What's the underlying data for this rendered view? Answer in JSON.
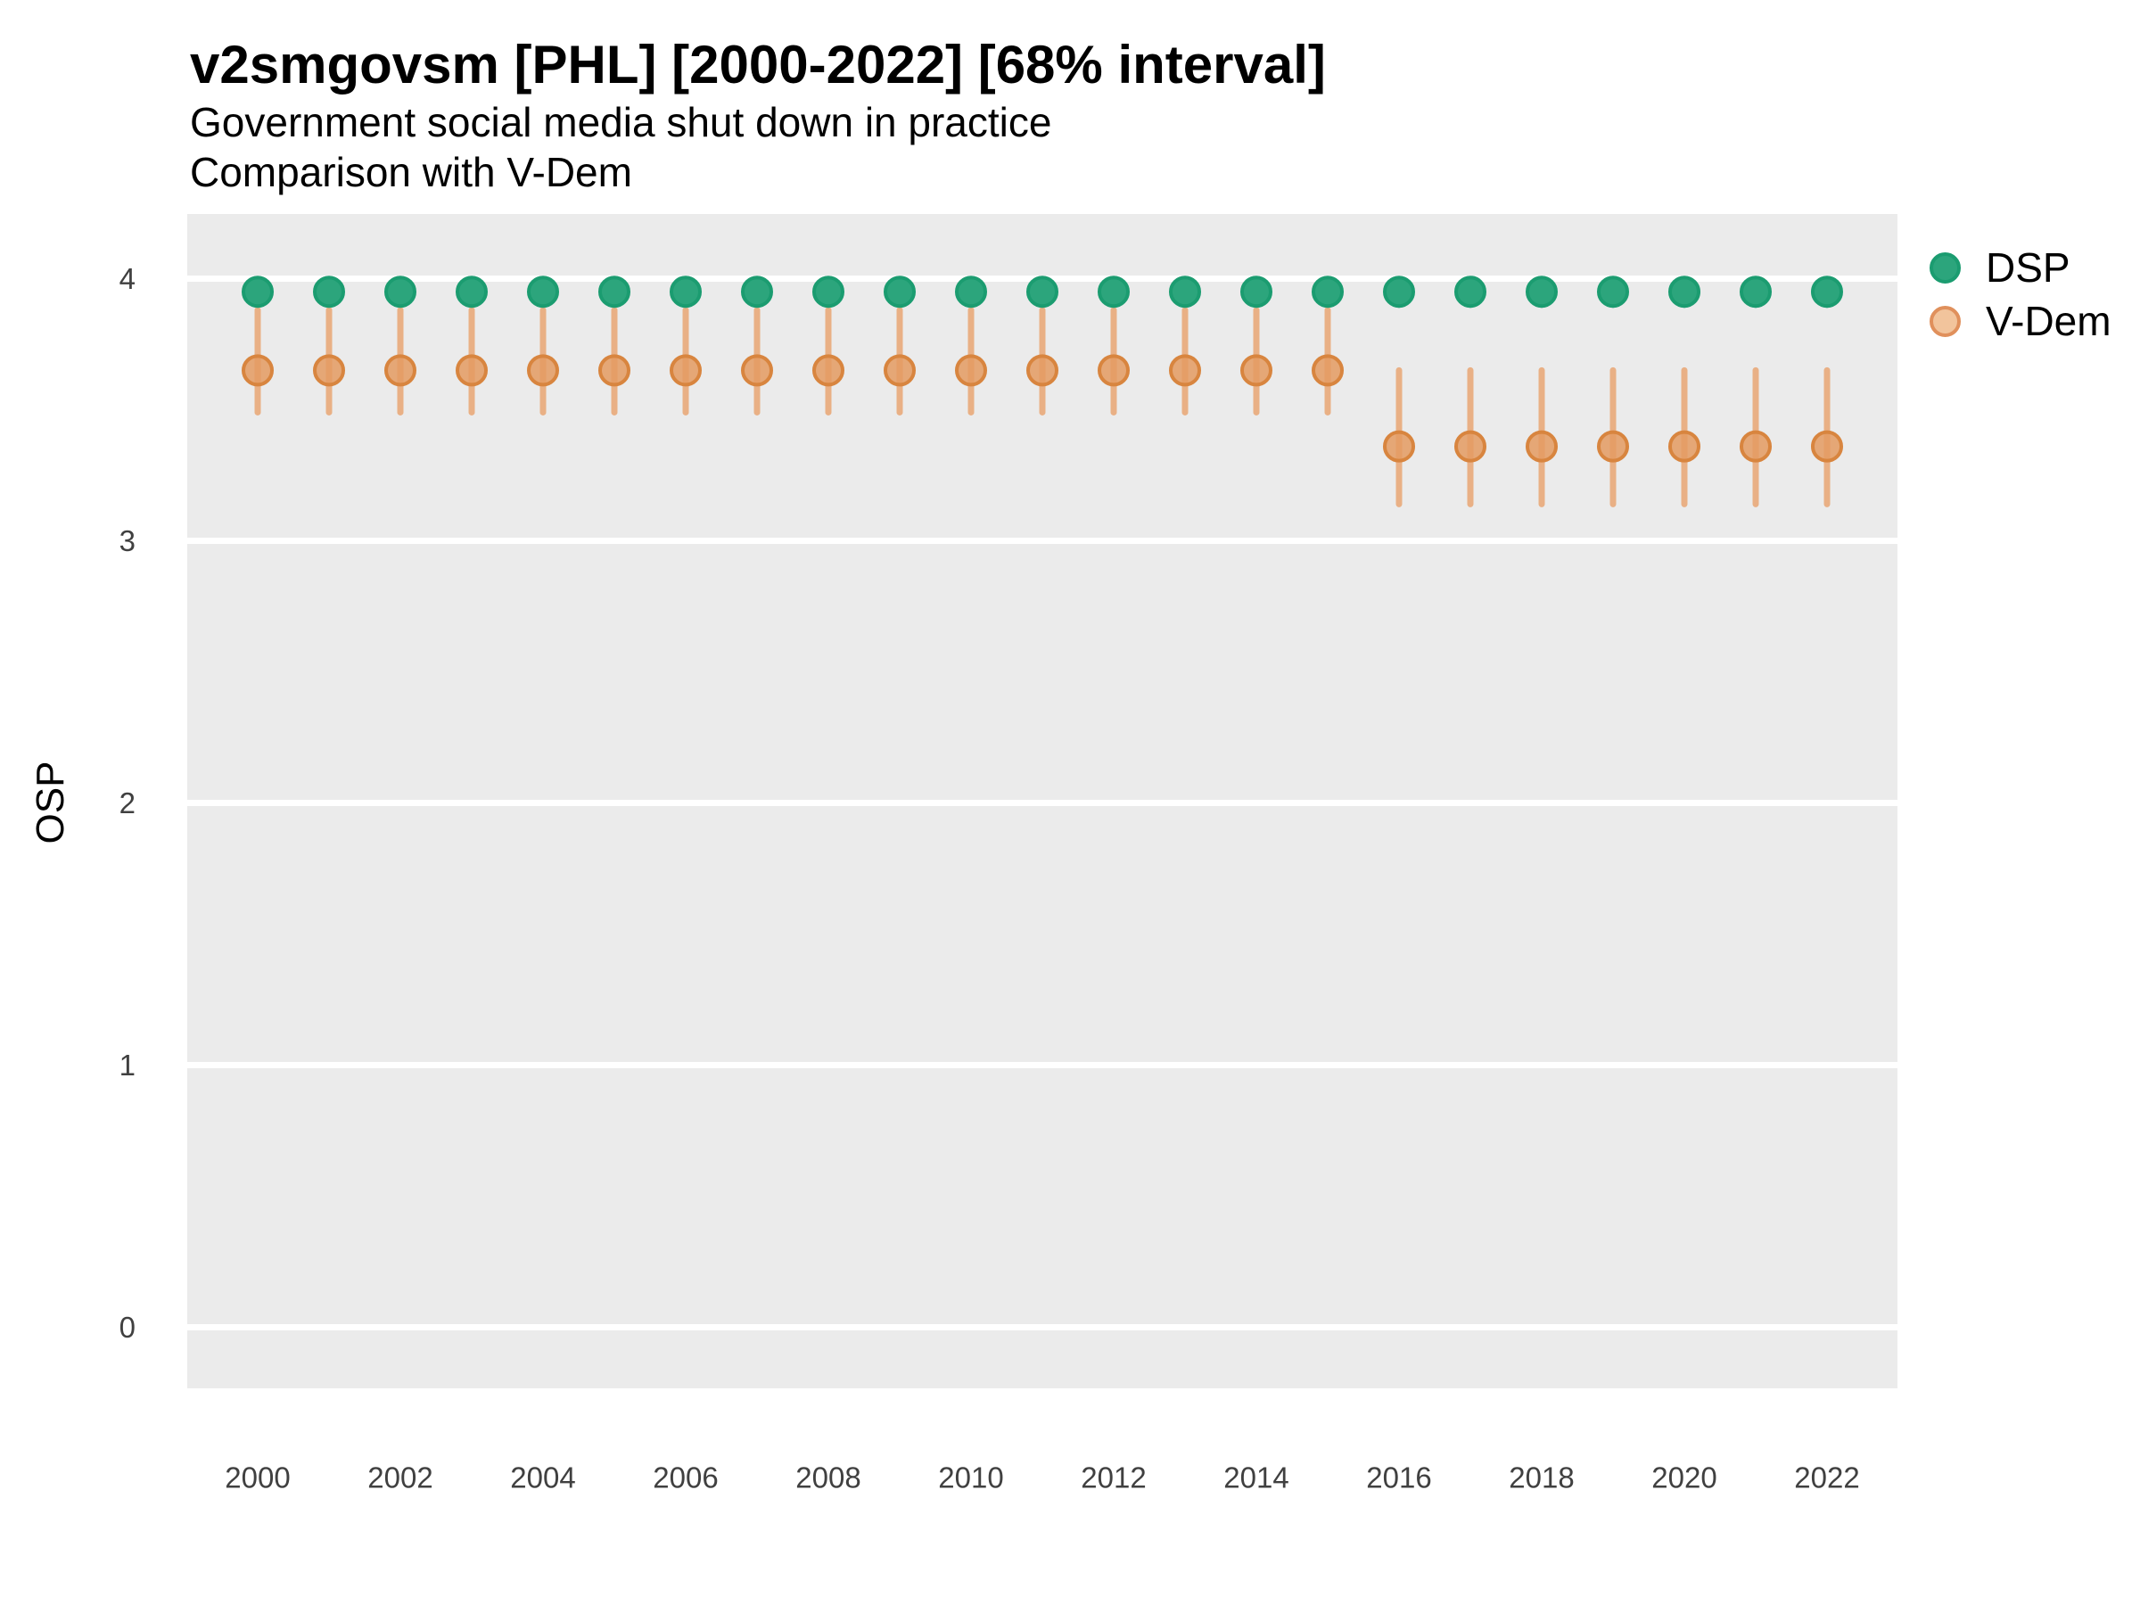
{
  "chart_data": {
    "type": "scatter",
    "subtype": "point-interval-comparison",
    "title": "v2smgovsm [PHL] [2000-2022] [68% interval]",
    "subtitle": "Government social media shut down in practice",
    "subtitle2": "Comparison with V-Dem",
    "xlabel": "",
    "ylabel": "OSP",
    "ylim": [
      -0.25,
      4.25
    ],
    "xlim": [
      1999,
      2023
    ],
    "y_ticks": [
      4,
      3,
      2,
      1,
      0
    ],
    "x_ticks": [
      2000,
      2002,
      2004,
      2006,
      2008,
      2010,
      2012,
      2014,
      2016,
      2018,
      2020,
      2022
    ],
    "grid": "horizontal-major-only",
    "panel_color": "#EBEBEB",
    "gridline_color": "#FFFFFF",
    "legend_position": "right-top",
    "interval_label": "68% interval",
    "x": [
      2000,
      2001,
      2002,
      2003,
      2004,
      2005,
      2006,
      2007,
      2008,
      2009,
      2010,
      2011,
      2012,
      2013,
      2014,
      2015,
      2016,
      2017,
      2018,
      2019,
      2020,
      2021,
      2022
    ],
    "series": [
      {
        "name": "DSP",
        "point_fill": "#2CA57C",
        "point_stroke": "#1B9C70",
        "interval_color": "#6CC09E",
        "values": [
          3.95,
          3.95,
          3.95,
          3.95,
          3.95,
          3.95,
          3.95,
          3.95,
          3.95,
          3.95,
          3.95,
          3.95,
          3.95,
          3.95,
          3.95,
          3.95,
          3.95,
          3.95,
          3.95,
          3.95,
          3.95,
          3.95,
          3.95
        ],
        "lower": [
          3.9,
          3.9,
          3.9,
          3.9,
          3.9,
          3.9,
          3.9,
          3.9,
          3.9,
          3.9,
          3.9,
          3.9,
          3.9,
          3.9,
          3.9,
          3.9,
          3.9,
          3.9,
          3.9,
          3.9,
          3.9,
          3.9,
          3.9
        ],
        "upper": [
          3.98,
          3.98,
          3.98,
          3.98,
          3.98,
          3.98,
          3.98,
          3.98,
          3.98,
          3.98,
          3.98,
          3.98,
          3.98,
          3.98,
          3.98,
          3.98,
          3.98,
          3.98,
          3.98,
          3.98,
          3.98,
          3.98,
          3.98
        ]
      },
      {
        "name": "V-Dem",
        "point_fill": "#E49B61",
        "point_stroke": "#D8853F",
        "interval_color": "#E9B085",
        "values": [
          3.65,
          3.65,
          3.65,
          3.65,
          3.65,
          3.65,
          3.65,
          3.65,
          3.65,
          3.65,
          3.65,
          3.65,
          3.65,
          3.65,
          3.65,
          3.65,
          3.36,
          3.36,
          3.36,
          3.36,
          3.36,
          3.36,
          3.36
        ],
        "lower": [
          3.49,
          3.49,
          3.49,
          3.49,
          3.49,
          3.49,
          3.49,
          3.49,
          3.49,
          3.49,
          3.49,
          3.49,
          3.49,
          3.49,
          3.49,
          3.49,
          3.14,
          3.14,
          3.14,
          3.14,
          3.14,
          3.14,
          3.14
        ],
        "upper": [
          3.88,
          3.88,
          3.88,
          3.88,
          3.88,
          3.88,
          3.88,
          3.88,
          3.88,
          3.88,
          3.88,
          3.88,
          3.88,
          3.88,
          3.88,
          3.88,
          3.65,
          3.65,
          3.65,
          3.65,
          3.65,
          3.65,
          3.65
        ]
      }
    ]
  },
  "legend": {
    "items": [
      {
        "label": "DSP"
      },
      {
        "label": "V-Dem"
      }
    ]
  }
}
